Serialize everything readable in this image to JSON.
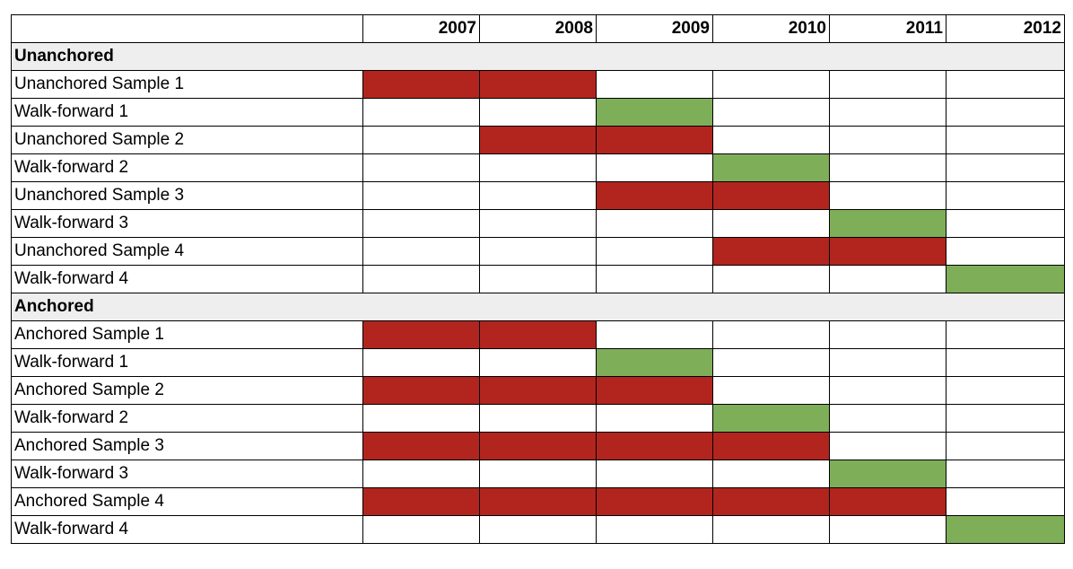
{
  "chart_data": {
    "type": "table",
    "columns": [
      "",
      "2007",
      "2008",
      "2009",
      "2010",
      "2011",
      "2012"
    ],
    "colors": {
      "sample": "#b1251e",
      "walk_forward": "#7fae59",
      "section_fill": "#eeeeee"
    },
    "sections": [
      {
        "title": "Unanchored",
        "rows": [
          {
            "label": "Unanchored Sample 1",
            "kind": "sample",
            "years": [
              "2007",
              "2008"
            ]
          },
          {
            "label": "Walk-forward 1",
            "kind": "walk",
            "years": [
              "2009"
            ]
          },
          {
            "label": "Unanchored Sample 2",
            "kind": "sample",
            "years": [
              "2008",
              "2009"
            ]
          },
          {
            "label": "Walk-forward 2",
            "kind": "walk",
            "years": [
              "2010"
            ]
          },
          {
            "label": "Unanchored Sample 3",
            "kind": "sample",
            "years": [
              "2009",
              "2010"
            ]
          },
          {
            "label": "Walk-forward 3",
            "kind": "walk",
            "years": [
              "2011"
            ]
          },
          {
            "label": "Unanchored Sample 4",
            "kind": "sample",
            "years": [
              "2010",
              "2011"
            ]
          },
          {
            "label": "Walk-forward 4",
            "kind": "walk",
            "years": [
              "2012"
            ]
          }
        ]
      },
      {
        "title": "Anchored",
        "rows": [
          {
            "label": "Anchored Sample 1",
            "kind": "sample",
            "years": [
              "2007",
              "2008"
            ]
          },
          {
            "label": "Walk-forward 1",
            "kind": "walk",
            "years": [
              "2009"
            ]
          },
          {
            "label": "Anchored Sample 2",
            "kind": "sample",
            "years": [
              "2007",
              "2008",
              "2009"
            ]
          },
          {
            "label": "Walk-forward 2",
            "kind": "walk",
            "years": [
              "2010"
            ]
          },
          {
            "label": "Anchored Sample 3",
            "kind": "sample",
            "years": [
              "2007",
              "2008",
              "2009",
              "2010"
            ]
          },
          {
            "label": "Walk-forward 3",
            "kind": "walk",
            "years": [
              "2011"
            ]
          },
          {
            "label": "Anchored Sample 4",
            "kind": "sample",
            "years": [
              "2007",
              "2008",
              "2009",
              "2010",
              "2011"
            ]
          },
          {
            "label": "Walk-forward 4",
            "kind": "walk",
            "years": [
              "2012"
            ]
          }
        ]
      }
    ]
  }
}
